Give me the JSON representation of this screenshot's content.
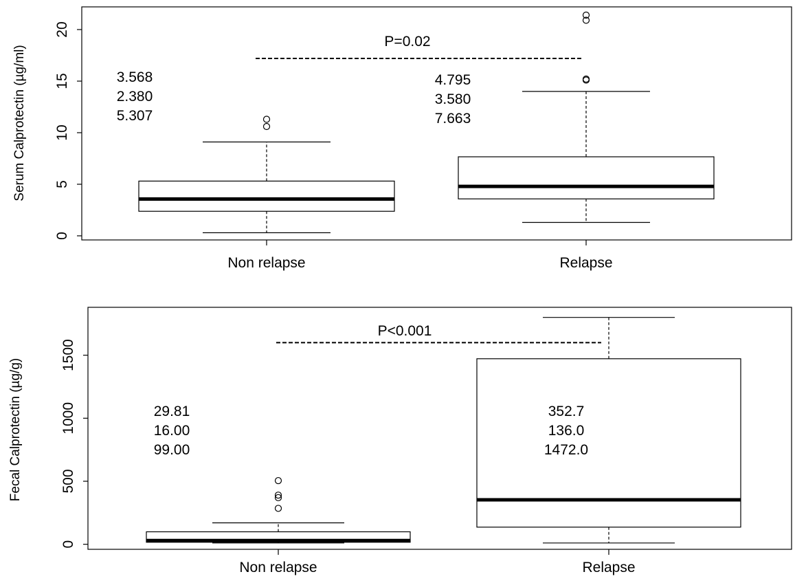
{
  "chart_data": [
    {
      "type": "box",
      "ylabel": "Serum Calprotectin (µg/ml)",
      "ylim": [
        -0.4,
        22.2
      ],
      "yticks": [
        0,
        5,
        10,
        15,
        20
      ],
      "categories": [
        "Non relapse",
        "Relapse"
      ],
      "boxes": [
        {
          "category": "Non relapse",
          "whisker_low": 0.3,
          "q1": 2.38,
          "median": 3.568,
          "q3": 5.307,
          "whisker_high": 9.1,
          "outliers": [
            10.6,
            11.3
          ],
          "stats_text": [
            "3.568",
            "2.380",
            "5.307"
          ]
        },
        {
          "category": "Relapse",
          "whisker_low": 1.3,
          "q1": 3.58,
          "median": 4.795,
          "q3": 7.663,
          "whisker_high": 14.0,
          "outliers": [
            15.1,
            15.2,
            20.9,
            21.4
          ],
          "stats_text": [
            "4.795",
            "3.580",
            "7.663"
          ]
        }
      ],
      "comparison": {
        "text": "P=0.02",
        "y": 17.2
      }
    },
    {
      "type": "box",
      "ylabel": "Fecal Calprotectin (µg/g)",
      "ylim": [
        -40,
        1880
      ],
      "yticks": [
        0,
        500,
        1000,
        1500
      ],
      "categories": [
        "Non relapse",
        "Relapse"
      ],
      "boxes": [
        {
          "category": "Non relapse",
          "whisker_low": 10,
          "q1": 16.0,
          "median": 29.81,
          "q3": 99.0,
          "whisker_high": 170,
          "outliers": [
            285,
            370,
            390,
            505
          ],
          "stats_text": [
            "29.81",
            "16.00",
            "99.00"
          ]
        },
        {
          "category": "Relapse",
          "whisker_low": 10,
          "q1": 136.0,
          "median": 352.7,
          "q3": 1472.0,
          "whisker_high": 1800,
          "outliers": [],
          "stats_text": [
            "352.7",
            "136.0",
            "1472.0"
          ]
        }
      ],
      "comparison": {
        "text": "P<0.001",
        "y": 1600
      }
    }
  ]
}
